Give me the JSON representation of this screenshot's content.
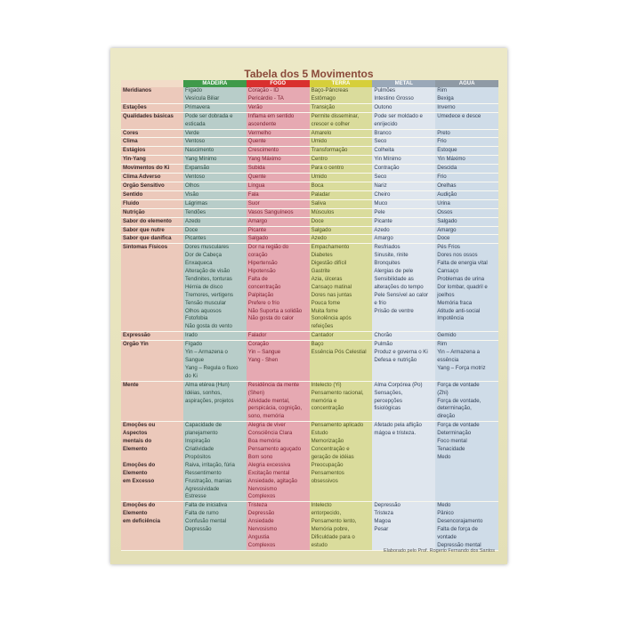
{
  "title": "Tabela dos 5 Movimentos",
  "columns": [
    {
      "label": "MADEIRA",
      "color": "#3f9a4a"
    },
    {
      "label": "FOGO",
      "color": "#d9302e"
    },
    {
      "label": "TERRA",
      "color": "#d6cf3a"
    },
    {
      "label": "METAL",
      "color": "#9aa8b8"
    },
    {
      "label": "AGUA",
      "color": "#8f9aa5"
    }
  ],
  "rows": [
    {
      "label": "Meridianos",
      "cells": [
        "Fígado\nVesícula Biliar",
        "Coração - ID\nPericárdio - TA",
        "Baço-Pâncreas\nEstômago",
        "Pulmões\nIntestino Grosso",
        "Rim\nBexiga"
      ]
    },
    {
      "label": "Estações",
      "cells": [
        "Primavera",
        "Verão",
        "Transição",
        "Outono",
        "Inverno"
      ]
    },
    {
      "label": "Qualidades básicas",
      "cells": [
        "Pode ser dobrada e\nesticada",
        "Inflama em sentido\nascendente",
        "Permite disseminar,\ncrescer e colher",
        "Pode ser moldado e\nenrijecido",
        "Umedece e desce"
      ]
    },
    {
      "label": "Cores",
      "cells": [
        "Verde",
        "Vermelho",
        "Amarelo",
        "Branco",
        "Preto"
      ]
    },
    {
      "label": "Clima",
      "cells": [
        "Ventoso",
        "Quente",
        "Úmido",
        "Seco",
        "Frio"
      ]
    },
    {
      "label": "Estágios",
      "cells": [
        "Nascimento",
        "Crescimento",
        "Transformação",
        "Colheita",
        "Estoque"
      ]
    },
    {
      "label": "Yin-Yang",
      "cells": [
        "Yang Mínimo",
        "Yang Máximo",
        "Centro",
        "Yin Mínimo",
        "Yin Máximo"
      ]
    },
    {
      "label": "Movimentos do Ki",
      "cells": [
        "Expansão",
        "Subida",
        "Para o centro",
        "Contração",
        "Descida"
      ]
    },
    {
      "label": "Clima Adverso",
      "cells": [
        "Ventoso",
        "Quente",
        "Úmido",
        "Seco",
        "Frio"
      ]
    },
    {
      "label": "Órgão Sensitivo",
      "cells": [
        "Olhos",
        "Língua",
        "Boca",
        "Nariz",
        "Orelhas"
      ]
    },
    {
      "label": "Sentido",
      "cells": [
        "Visão",
        "Fala",
        "Paladar",
        "Cheiro",
        "Audição"
      ]
    },
    {
      "label": "Fluido",
      "cells": [
        "Lágrimas",
        "Suor",
        "Saliva",
        "Muco",
        "Urina"
      ]
    },
    {
      "label": "Nutrição",
      "cells": [
        "Tendões",
        "Vasos Sanguíneos",
        "Músculos",
        "Pele",
        "Ossos"
      ]
    },
    {
      "label": "Sabor do elemento",
      "cells": [
        "Azedo",
        "Amargo",
        "Doce",
        "Picante",
        "Salgado"
      ]
    },
    {
      "label": "Sabor que nutre",
      "cells": [
        "Doce",
        "Picante",
        "Salgado",
        "Azedo",
        "Amargo"
      ]
    },
    {
      "label": "Sabor que danifica",
      "cells": [
        "Picantes",
        "Salgado",
        "Azedo",
        "Amargo",
        "Doce"
      ]
    },
    {
      "label": "Sintomas Físicos",
      "cells": [
        "Dores musculares\nDor de Cabeça\nEnxaqueca\nAlteração de visão\nTendinites, tonturas\nHérnia de disco\nTremores, vertigens\nTensão muscular\nOlhos aquosos\nFotofobia\nNão gosta do vento",
        "Dor na região do\ncoração\nHipertensão\nHipotensão\nFalta de\nconcentração\nPalpitação\nPrefere o frio\nNão Suporta a solidão\nNão gosta do calor",
        "Empachamento\nDiabetes\nDigestão difícil\nGastrite\nAzia, úlceras\nCansaço matinal\nDores nas juntas\nPouca fome\nMuita fome\nSonolência após\nrefeições",
        "Resfriados\nSinusite, rinite\nBronquites\nAlergias de pele\nSensibilidade as\nalterações do tempo\nPele Sensível ao calor\ne frio\nPrisão de ventre",
        "Pés Frios\nDores nos ossos\nFalta de energia vital\nCansaço\nProblemas de urina\nDor lombar, quadril e\njoelhos\nMemória fraca\nAtitude anti-social\nImpotência"
      ]
    },
    {
      "label": "Expressão",
      "cells": [
        "Irado",
        "Falador",
        "Cantador",
        "Chorão",
        "Gemido"
      ]
    },
    {
      "label": "Órgão Yin",
      "cells": [
        "Fígado\nYin – Armazena o\nSangue\nYang – Regula o fluxo\ndo Ki",
        "Coração\nYin – Sangue\nYang - Shen",
        "Baço\nEssência Pós Celestial",
        "Pulmão\nProduz e governa o Ki\nDefesa e nutrição",
        "Rim\nYin – Armazena a\nessência\nYang – Força motriz"
      ]
    },
    {
      "label": "Mente",
      "cells": [
        "Alma etérea (Hun)\nIdéias, sonhos,\naspirações, projetos",
        "Residência da mente\n(Shen)\nAtividade mental,\nperspicácia, cognição,\nsono, memória",
        "Intelecto (Yi)\nPensamento racional,\nmemória e\nconcentração",
        "Alma Corpórea (Po)\nSensações,\npercepções\nfisiológicas",
        "Força de vontade\n(Zhi)\nForça de vontade,\ndeterminação,\ndireção"
      ]
    },
    {
      "label": "Emoções ou\nAspectos\nmentais do\nElemento\n\nEmoções do\nElemento\nem Excesso",
      "cells": [
        "Capacidade de\nplanejamento\nInspiração\nCriatividade\nPropósitos\nRaiva, irritação, fúria\nRessentimento\nFrustração, manias\nAgressividade\nEstresse",
        "Alegria de viver\nConsciência Clara\nBoa memória\nPensamento aguçado\nBom sono\nAlegria excessiva\nExcitação mental\nAnsiedade, agitação\nNervosismo\nComplexos",
        "Pensamento aplicado\nEstudo\nMemorização\nConcentração e\ngeração de idéias\nPreocupação\nPensamentos\nobsessivos",
        "Afetado pela aflição\nmágoa e tristeza.",
        "Força de vontade\nDeterminação\nFoco mental\nTenacidade\nMedo"
      ]
    },
    {
      "label": "Emoções do\nElemento\nem deficiência",
      "cells": [
        "Falta de iniciativa\nFalta de rumo\nConfusão mental\nDepressão",
        "Tristeza\nDepressão\nAnsiedade\nNervosismo\nAngustia\nComplexos",
        "Intelecto\nentorpecido,\nPensamento lento,\nMemória pobre,\nDificuldade para o\nestudo",
        "Depressão\nTristeza\nMagoa\nPesar",
        "Medo\nPânico\nDesencorajamento\nFalta de força de\nvontade\nDepressão mental"
      ]
    }
  ],
  "footer": "Elaborado pelo Prof. Rogerio Fernando dos Santos"
}
